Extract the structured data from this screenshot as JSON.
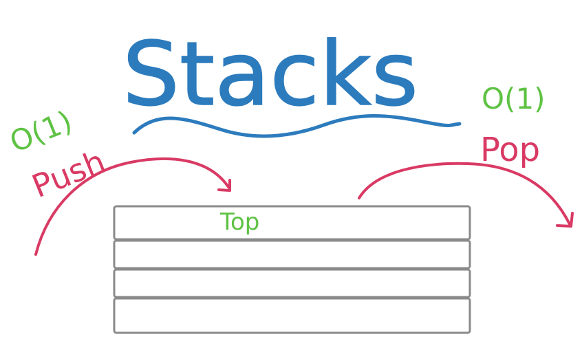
{
  "title": "Stacks",
  "push": {
    "label": "Push",
    "complexity": "O(1)"
  },
  "pop": {
    "label": "Pop",
    "complexity": "O(1)"
  },
  "stack": {
    "top_label": "Top",
    "slot_count": 4
  },
  "colors": {
    "title": "#2c7bbd",
    "arrow": "#d93a64",
    "complexity": "#5ec243",
    "stack_border": "#8a8a8a"
  }
}
